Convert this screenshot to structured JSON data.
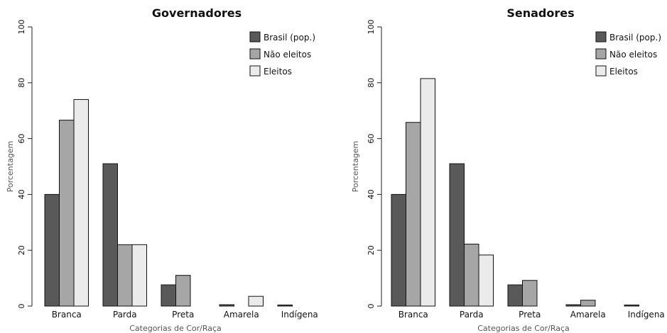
{
  "chart_data": [
    {
      "type": "bar",
      "title": "Governadores",
      "xlabel": "Categorias de Cor/Raça",
      "ylabel": "Porcentagem",
      "ylim": [
        0,
        100
      ],
      "yticks": [
        "0",
        "20",
        "40",
        "60",
        "80",
        "100"
      ],
      "categories": [
        "Branca",
        "Parda",
        "Preta",
        "Amarela",
        "Indígena"
      ],
      "series": [
        {
          "name": "Brasil (pop.)",
          "color": "#595959",
          "values": [
            40.0,
            51.0,
            7.6,
            0.5,
            0.4
          ]
        },
        {
          "name": "Não eleitos",
          "color": "#a6a6a6",
          "values": [
            66.6,
            22.0,
            11.0,
            0.0,
            0.0
          ]
        },
        {
          "name": "Eleitos",
          "color": "#ebebeb",
          "values": [
            74.0,
            22.0,
            0.0,
            3.5,
            0.0
          ]
        }
      ],
      "legend": "top-right",
      "grid": false
    },
    {
      "type": "bar",
      "title": "Senadores",
      "xlabel": "Categorias de Cor/Raça",
      "ylabel": "Porcentagem",
      "ylim": [
        0,
        100
      ],
      "yticks": [
        "0",
        "20",
        "40",
        "60",
        "80",
        "100"
      ],
      "categories": [
        "Branca",
        "Parda",
        "Preta",
        "Amarela",
        "Indígena"
      ],
      "series": [
        {
          "name": "Brasil (pop.)",
          "color": "#595959",
          "values": [
            40.0,
            51.0,
            7.6,
            0.5,
            0.4
          ]
        },
        {
          "name": "Não eleitos",
          "color": "#a6a6a6",
          "values": [
            65.8,
            22.2,
            9.2,
            2.1,
            0.0
          ]
        },
        {
          "name": "Eleitos",
          "color": "#ebebeb",
          "values": [
            81.5,
            18.3,
            0.0,
            0.0,
            0.0
          ]
        }
      ],
      "legend": "top-right",
      "grid": false
    }
  ]
}
